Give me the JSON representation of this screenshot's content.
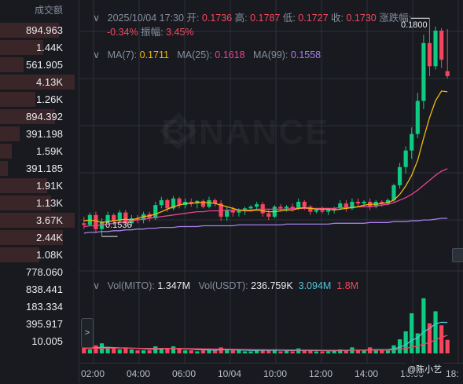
{
  "volume_panel": {
    "header": "成交额",
    "rows": [
      {
        "value": "894.963",
        "fill": 0.75,
        "color": "#3a2529"
      },
      {
        "value": "1.44K",
        "fill": 0.55,
        "color": "#3a2529"
      },
      {
        "value": "561.905",
        "fill": 0.3,
        "color": "#3a2529"
      },
      {
        "value": "4.13K",
        "fill": 0.95,
        "color": "#3a2529"
      },
      {
        "value": "1.26K",
        "fill": 0.45,
        "color": "#3a2529"
      },
      {
        "value": "894.392",
        "fill": 0.7,
        "color": "#3a2529"
      },
      {
        "value": "391.198",
        "fill": 0.25,
        "color": "#3a2529"
      },
      {
        "value": "1.59K",
        "fill": 0.15,
        "color": "#3a2529"
      },
      {
        "value": "391.185",
        "fill": 0.1,
        "color": "#3a2529"
      },
      {
        "value": "1.91K",
        "fill": 0.6,
        "color": "#3a2529"
      },
      {
        "value": "1.13K",
        "fill": 0.65,
        "color": "#3a2529"
      },
      {
        "value": "3.67K",
        "fill": 0.95,
        "color": "#3a2529"
      },
      {
        "value": "2.44K",
        "fill": 0.8,
        "color": "#3a2529"
      },
      {
        "value": "1.08K",
        "fill": 0.5,
        "color": "#3a2529"
      },
      {
        "value": "778.060",
        "fill": 0.0,
        "color": "#1b2e28"
      },
      {
        "value": "838.441",
        "fill": 0.0,
        "color": "#1b2e28"
      },
      {
        "value": "183.334",
        "fill": 0.0,
        "color": "#1b2e28"
      },
      {
        "value": "395.917",
        "fill": 0.0,
        "color": "#1b2e28"
      },
      {
        "value": "10.005",
        "fill": 0.0,
        "color": "#1b2e28"
      }
    ]
  },
  "ohlc": {
    "datetime": "2025/10/04 17:30",
    "open_label": "开:",
    "open": "0.1736",
    "high_label": "高:",
    "high": "0.1787",
    "low_label": "低:",
    "low": "0.1727",
    "close_label": "收:",
    "close": "0.1730",
    "change_label": "涨跌幅:",
    "change": "-0.34%",
    "amplitude_label": "振幅:",
    "amplitude": "3.45%"
  },
  "ma": {
    "ma7_label": "MA(7):",
    "ma7": "0.1711",
    "ma7_color": "#f0b90b",
    "ma25_label": "MA(25):",
    "ma25": "0.1618",
    "ma25_color": "#e84393",
    "ma99_label": "MA(99):",
    "ma99": "0.1558",
    "ma99_color": "#a97ee8"
  },
  "vol": {
    "mito_label": "Vol(MITO):",
    "mito": "1.347M",
    "usdt_label": "Vol(USDT):",
    "usdt": "236.759K",
    "ma1": "3.094M",
    "ma1_color": "#55c5d8",
    "ma2": "1.8M",
    "ma2_color": "#f6465d"
  },
  "markers": {
    "high": "0.1800",
    "low": "0.1536"
  },
  "watermark": "BINANCE",
  "xaxis": [
    "02:00",
    "04:00",
    "06:00",
    "10/04",
    "10:00",
    "12:00",
    "14:00",
    "16:00",
    "18:"
  ],
  "credit": "@陈小艺",
  "expand_glyph": ">",
  "colors": {
    "up": "#0ecb81",
    "down": "#f6465d",
    "bg": "#181a20",
    "grid": "#2b3139"
  },
  "chart_data": {
    "type": "candlestick",
    "interval": "30m",
    "y_labels": {
      "high": 0.18,
      "low": 0.1536
    },
    "candles": [
      [
        0.1552,
        0.156,
        0.1545,
        0.155
      ],
      [
        0.155,
        0.1565,
        0.1548,
        0.1562
      ],
      [
        0.1562,
        0.1566,
        0.154,
        0.1545
      ],
      [
        0.1545,
        0.1558,
        0.1536,
        0.1554
      ],
      [
        0.1554,
        0.1566,
        0.155,
        0.1562
      ],
      [
        0.1562,
        0.1564,
        0.155,
        0.1555
      ],
      [
        0.1555,
        0.1568,
        0.1552,
        0.1565
      ],
      [
        0.1565,
        0.1568,
        0.1548,
        0.1552
      ],
      [
        0.1552,
        0.1562,
        0.1548,
        0.1558
      ],
      [
        0.1558,
        0.1562,
        0.1552,
        0.1556
      ],
      [
        0.1556,
        0.1566,
        0.1552,
        0.1563
      ],
      [
        0.1563,
        0.1566,
        0.1554,
        0.1558
      ],
      [
        0.1558,
        0.1578,
        0.1556,
        0.1574
      ],
      [
        0.1574,
        0.1584,
        0.157,
        0.158
      ],
      [
        0.158,
        0.1582,
        0.1566,
        0.157
      ],
      [
        0.157,
        0.1585,
        0.1568,
        0.1582
      ],
      [
        0.1582,
        0.1584,
        0.157,
        0.1574
      ],
      [
        0.1574,
        0.1582,
        0.157,
        0.1578
      ],
      [
        0.1578,
        0.1582,
        0.1572,
        0.1576
      ],
      [
        0.1576,
        0.158,
        0.157,
        0.1579
      ],
      [
        0.1579,
        0.1581,
        0.157,
        0.1572
      ],
      [
        0.1572,
        0.1584,
        0.157,
        0.158
      ],
      [
        0.158,
        0.1582,
        0.1572,
        0.1576
      ],
      [
        0.1576,
        0.158,
        0.1555,
        0.156
      ],
      [
        0.156,
        0.1572,
        0.1555,
        0.1568
      ],
      [
        0.1568,
        0.1572,
        0.156,
        0.1565
      ],
      [
        0.1565,
        0.157,
        0.156,
        0.1567
      ],
      [
        0.1567,
        0.1572,
        0.1562,
        0.157
      ],
      [
        0.157,
        0.1574,
        0.1566,
        0.1572
      ],
      [
        0.1572,
        0.1578,
        0.1568,
        0.1575
      ],
      [
        0.1575,
        0.1578,
        0.156,
        0.1564
      ],
      [
        0.1564,
        0.1568,
        0.1556,
        0.156
      ],
      [
        0.156,
        0.1574,
        0.1558,
        0.1572
      ],
      [
        0.1572,
        0.1575,
        0.1566,
        0.157
      ],
      [
        0.157,
        0.1574,
        0.1566,
        0.1572
      ],
      [
        0.1572,
        0.1576,
        0.1566,
        0.157
      ],
      [
        0.157,
        0.1582,
        0.1568,
        0.1578
      ],
      [
        0.1578,
        0.158,
        0.1568,
        0.1572
      ],
      [
        0.1572,
        0.1574,
        0.1562,
        0.1566
      ],
      [
        0.1566,
        0.157,
        0.1564,
        0.1568
      ],
      [
        0.1568,
        0.1572,
        0.1564,
        0.1566
      ],
      [
        0.1566,
        0.157,
        0.1562,
        0.1568
      ],
      [
        0.1568,
        0.1572,
        0.1564,
        0.157
      ],
      [
        0.157,
        0.158,
        0.1568,
        0.1576
      ],
      [
        0.1576,
        0.158,
        0.1566,
        0.157
      ],
      [
        0.157,
        0.1582,
        0.1568,
        0.1578
      ],
      [
        0.1578,
        0.1582,
        0.1572,
        0.1576
      ],
      [
        0.1576,
        0.158,
        0.1572,
        0.1578
      ],
      [
        0.1578,
        0.1582,
        0.1568,
        0.1572
      ],
      [
        0.1572,
        0.158,
        0.157,
        0.1578
      ],
      [
        0.1578,
        0.158,
        0.1572,
        0.1576
      ],
      [
        0.1576,
        0.1582,
        0.1574,
        0.158
      ],
      [
        0.158,
        0.16,
        0.1578,
        0.1598
      ],
      [
        0.1598,
        0.1625,
        0.1594,
        0.162
      ],
      [
        0.162,
        0.1645,
        0.1612,
        0.164
      ],
      [
        0.164,
        0.1668,
        0.163,
        0.166
      ],
      [
        0.166,
        0.171,
        0.1655,
        0.17
      ],
      [
        0.17,
        0.178,
        0.169,
        0.177
      ],
      [
        0.177,
        0.18,
        0.173,
        0.1742
      ],
      [
        0.1742,
        0.179,
        0.1738,
        0.1785
      ],
      [
        0.1785,
        0.1788,
        0.174,
        0.175
      ],
      [
        0.1736,
        0.1787,
        0.1727,
        0.173
      ]
    ],
    "ma7": [
      0.1555,
      0.1556,
      0.1555,
      0.1553,
      0.1554,
      0.1555,
      0.1556,
      0.1557,
      0.1556,
      0.1558,
      0.156,
      0.1561,
      0.1563,
      0.1566,
      0.1569,
      0.1572,
      0.1574,
      0.1576,
      0.1576,
      0.1577,
      0.1577,
      0.1577,
      0.1576,
      0.1574,
      0.1572,
      0.157,
      0.1568,
      0.1567,
      0.1567,
      0.1568,
      0.1567,
      0.1566,
      0.1566,
      0.1567,
      0.1568,
      0.1568,
      0.157,
      0.1571,
      0.157,
      0.1569,
      0.1569,
      0.1569,
      0.1568,
      0.1569,
      0.157,
      0.1571,
      0.1572,
      0.1574,
      0.1575,
      0.1575,
      0.1576,
      0.1577,
      0.158,
      0.1587,
      0.1597,
      0.161,
      0.1628,
      0.1655,
      0.168,
      0.17,
      0.1712,
      0.1711
    ],
    "ma25": [
      0.1548,
      0.1549,
      0.1549,
      0.155,
      0.1551,
      0.1552,
      0.1553,
      0.1554,
      0.1555,
      0.1556,
      0.1557,
      0.1558,
      0.1559,
      0.156,
      0.1561,
      0.1562,
      0.1563,
      0.1564,
      0.1565,
      0.1566,
      0.1566,
      0.1567,
      0.1567,
      0.1567,
      0.1568,
      0.1568,
      0.1568,
      0.1568,
      0.1568,
      0.1569,
      0.1569,
      0.1569,
      0.1569,
      0.1569,
      0.1569,
      0.157,
      0.157,
      0.157,
      0.157,
      0.157,
      0.157,
      0.157,
      0.157,
      0.1571,
      0.1571,
      0.1571,
      0.1572,
      0.1572,
      0.1572,
      0.1573,
      0.1574,
      0.1575,
      0.1577,
      0.158,
      0.1583,
      0.1587,
      0.1592,
      0.1598,
      0.1604,
      0.161,
      0.1615,
      0.1618
    ],
    "ma99": [
      0.154,
      0.1541,
      0.1541,
      0.1542,
      0.1542,
      0.1543,
      0.1543,
      0.1544,
      0.1544,
      0.1545,
      0.1545,
      0.1546,
      0.1546,
      0.1547,
      0.1547,
      0.1547,
      0.1548,
      0.1548,
      0.1548,
      0.1548,
      0.1549,
      0.1549,
      0.1549,
      0.1549,
      0.1549,
      0.1549,
      0.155,
      0.155,
      0.155,
      0.155,
      0.155,
      0.155,
      0.155,
      0.155,
      0.1551,
      0.1551,
      0.1551,
      0.1551,
      0.1551,
      0.1551,
      0.1551,
      0.1551,
      0.1552,
      0.1552,
      0.1552,
      0.1552,
      0.1552,
      0.1552,
      0.1553,
      0.1553,
      0.1553,
      0.1553,
      0.1554,
      0.1554,
      0.1554,
      0.1555,
      0.1555,
      0.1556,
      0.1556,
      0.1557,
      0.1558,
      0.1558
    ],
    "volume": [
      0.6,
      0.4,
      0.8,
      1.0,
      0.5,
      0.5,
      0.4,
      0.6,
      0.4,
      0.3,
      0.3,
      0.3,
      0.7,
      0.5,
      0.5,
      0.7,
      0.5,
      0.3,
      0.3,
      0.2,
      0.3,
      0.3,
      0.3,
      0.6,
      0.4,
      0.3,
      0.3,
      0.2,
      0.2,
      0.3,
      0.4,
      0.3,
      0.4,
      0.2,
      0.3,
      0.2,
      0.5,
      0.3,
      0.3,
      0.2,
      0.2,
      0.2,
      0.3,
      0.4,
      0.3,
      0.6,
      0.3,
      0.3,
      0.6,
      0.4,
      0.3,
      0.3,
      0.8,
      1.4,
      2.2,
      4.0,
      2.0,
      5.5,
      3.0,
      4.2,
      2.8,
      1.35
    ],
    "vol_ma1": [
      0.55,
      0.55,
      0.56,
      0.6,
      0.6,
      0.58,
      0.56,
      0.55,
      0.52,
      0.5,
      0.46,
      0.42,
      0.45,
      0.46,
      0.48,
      0.5,
      0.48,
      0.45,
      0.42,
      0.38,
      0.36,
      0.34,
      0.33,
      0.36,
      0.36,
      0.35,
      0.34,
      0.32,
      0.3,
      0.3,
      0.31,
      0.31,
      0.32,
      0.31,
      0.3,
      0.29,
      0.3,
      0.3,
      0.3,
      0.29,
      0.28,
      0.27,
      0.27,
      0.28,
      0.29,
      0.32,
      0.32,
      0.33,
      0.36,
      0.37,
      0.37,
      0.38,
      0.45,
      0.6,
      0.85,
      1.3,
      1.55,
      2.15,
      2.5,
      2.95,
      3.1,
      3.09
    ],
    "vol_ma2": [
      0.5,
      0.5,
      0.5,
      0.52,
      0.52,
      0.53,
      0.53,
      0.53,
      0.52,
      0.51,
      0.5,
      0.49,
      0.5,
      0.5,
      0.5,
      0.5,
      0.49,
      0.48,
      0.47,
      0.46,
      0.45,
      0.44,
      0.43,
      0.43,
      0.42,
      0.41,
      0.4,
      0.39,
      0.38,
      0.37,
      0.37,
      0.36,
      0.36,
      0.35,
      0.34,
      0.34,
      0.34,
      0.33,
      0.33,
      0.32,
      0.31,
      0.31,
      0.31,
      0.31,
      0.31,
      0.32,
      0.32,
      0.32,
      0.33,
      0.33,
      0.33,
      0.34,
      0.36,
      0.42,
      0.5,
      0.62,
      0.72,
      0.92,
      1.1,
      1.35,
      1.6,
      1.8
    ]
  }
}
